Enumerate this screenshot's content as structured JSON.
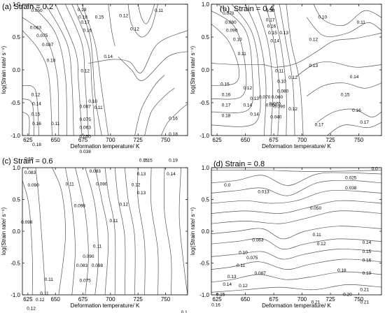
{
  "chart_data": [
    {
      "type": "contour",
      "title": "(a) Strain = 0.2",
      "xlabel": "Deformation temperature/ K",
      "ylabel": "log(Strain rate/ s⁻¹)",
      "xlim": [
        620,
        770
      ],
      "ylim": [
        -1.0,
        1.0
      ],
      "xticks": [
        625,
        650,
        675,
        700,
        725,
        750
      ],
      "yticks": [
        -1.0,
        -0.5,
        0.0,
        0.5,
        1.0
      ],
      "contour_labels": [
        {
          "text": "0.050",
          "x": 633,
          "y": 0.9
        },
        {
          "text": "0.063",
          "x": 632,
          "y": 0.64
        },
        {
          "text": "0.075",
          "x": 638,
          "y": 0.52
        },
        {
          "text": "0.087",
          "x": 643,
          "y": 0.38
        },
        {
          "text": "0.10",
          "x": 646,
          "y": 0.14
        },
        {
          "text": "0.19",
          "x": 674,
          "y": 0.91
        },
        {
          "text": "0.18",
          "x": 675,
          "y": 0.8
        },
        {
          "text": "0.17",
          "x": 677,
          "y": 0.72
        },
        {
          "text": "0.16",
          "x": 679,
          "y": 0.6
        },
        {
          "text": "0.15",
          "x": 690,
          "y": 0.8
        },
        {
          "text": "0.12",
          "x": 712,
          "y": 0.82
        },
        {
          "text": "0.12",
          "x": 722,
          "y": 0.62
        },
        {
          "text": "0.11",
          "x": 744,
          "y": 0.9
        },
        {
          "text": "0.14",
          "x": 698,
          "y": 0.2
        },
        {
          "text": "0.12",
          "x": 677,
          "y": -0.02
        },
        {
          "text": "0.12",
          "x": 632,
          "y": -0.38
        },
        {
          "text": "0.14",
          "x": 633,
          "y": -0.52
        },
        {
          "text": "0.15",
          "x": 632,
          "y": -0.68
        },
        {
          "text": "0.16",
          "x": 633,
          "y": -0.82
        },
        {
          "text": "0.18",
          "x": 633,
          "y": -1.14
        },
        {
          "text": "0.11",
          "x": 650,
          "y": -0.82
        },
        {
          "text": "0.10",
          "x": 684,
          "y": -0.48
        },
        {
          "text": "0.087",
          "x": 677,
          "y": -0.56
        },
        {
          "text": "0.11",
          "x": 689,
          "y": -0.58
        },
        {
          "text": "0.075",
          "x": 677,
          "y": -0.76
        },
        {
          "text": "0.063",
          "x": 677,
          "y": -0.88
        },
        {
          "text": "0.050",
          "x": 677,
          "y": -1.02
        },
        {
          "text": "0.038",
          "x": 677,
          "y": -1.25
        },
        {
          "text": "0.16",
          "x": 757,
          "y": -0.74
        },
        {
          "text": "0.18",
          "x": 757,
          "y": -0.98
        },
        {
          "text": "0.19",
          "x": 626,
          "y": -1.36
        },
        {
          "text": "0.15",
          "x": 730,
          "y": -1.38
        },
        {
          "text": "0.15",
          "x": 734,
          "y": -1.38
        },
        {
          "text": "0.19",
          "x": 757,
          "y": -1.38
        }
      ]
    },
    {
      "type": "contour",
      "title_prefix": "(b)",
      "title": "Strain = 0.4",
      "xlabel": "Deformation temperature/ K",
      "ylabel": "log(Strain rate/ s⁻¹)",
      "xlim": [
        620,
        770
      ],
      "ylim": [
        -1.0,
        1.0
      ],
      "xticks": [
        625,
        650,
        675,
        700,
        725,
        750
      ],
      "yticks": [
        -1.0,
        -0.5,
        0.0,
        0.5,
        1.0
      ],
      "contour_labels": [
        {
          "text": "0.070",
          "x": 635,
          "y": 0.86
        },
        {
          "text": "0.080",
          "x": 637,
          "y": 0.72
        },
        {
          "text": "0.090",
          "x": 638,
          "y": 0.6
        },
        {
          "text": "0.10",
          "x": 643,
          "y": 0.46
        },
        {
          "text": "0.11",
          "x": 647,
          "y": 0.24
        },
        {
          "text": "0.18",
          "x": 672,
          "y": 0.9
        },
        {
          "text": "0.17",
          "x": 672,
          "y": 0.76
        },
        {
          "text": "0.16",
          "x": 673,
          "y": 0.66
        },
        {
          "text": "0.15",
          "x": 674,
          "y": 0.56
        },
        {
          "text": "0.14",
          "x": 676,
          "y": 0.44
        },
        {
          "text": "0.13",
          "x": 684,
          "y": 0.56
        },
        {
          "text": "0.10",
          "x": 718,
          "y": 0.8
        },
        {
          "text": "0.11",
          "x": 752,
          "y": 0.72
        },
        {
          "text": "0.12",
          "x": 710,
          "y": 0.46
        },
        {
          "text": "0.13",
          "x": 710,
          "y": 0.06
        },
        {
          "text": "0.12",
          "x": 692,
          "y": -0.12
        },
        {
          "text": "0.11",
          "x": 680,
          "y": -0.02
        },
        {
          "text": "0.10",
          "x": 682,
          "y": -0.18
        },
        {
          "text": "0.14",
          "x": 746,
          "y": -0.11
        },
        {
          "text": "0.15",
          "x": 738,
          "y": -0.38
        },
        {
          "text": "0.16",
          "x": 748,
          "y": -0.62
        },
        {
          "text": "0.17",
          "x": 715,
          "y": -0.84
        },
        {
          "text": "0.17",
          "x": 755,
          "y": -0.8
        },
        {
          "text": "0.15",
          "x": 632,
          "y": -0.22
        },
        {
          "text": "0.16",
          "x": 633,
          "y": -0.38
        },
        {
          "text": "0.17",
          "x": 633,
          "y": -0.54
        },
        {
          "text": "0.18",
          "x": 633,
          "y": -0.7
        },
        {
          "text": "0.12",
          "x": 652,
          "y": -0.28
        },
        {
          "text": "0.14",
          "x": 652,
          "y": -0.54
        },
        {
          "text": "0.13",
          "x": 658,
          "y": -0.44
        },
        {
          "text": "0.14",
          "x": 658,
          "y": -0.68
        },
        {
          "text": "0.070",
          "x": 667,
          "y": -0.42
        },
        {
          "text": "0.080",
          "x": 683,
          "y": -0.33
        },
        {
          "text": "0.060",
          "x": 678,
          "y": -0.42
        },
        {
          "text": "0.070",
          "x": 676,
          "y": -0.52
        },
        {
          "text": "0.050",
          "x": 673,
          "y": -0.54
        },
        {
          "text": "0.090",
          "x": 680,
          "y": -0.56
        },
        {
          "text": "0.040",
          "x": 677,
          "y": -0.72
        },
        {
          "text": "0.12",
          "x": 692,
          "y": -0.6
        }
      ]
    },
    {
      "type": "contour",
      "title": "(c) Strain = 0.6",
      "xlabel": "Deformation temperature/ K",
      "ylabel": "log(Strain rate/ s⁻¹)",
      "xlim": [
        620,
        770
      ],
      "ylim": [
        -1.0,
        1.0
      ],
      "xticks": [
        625,
        650,
        675,
        700,
        725,
        750
      ],
      "yticks": [
        -1.0,
        -0.5,
        0.0,
        0.5,
        1.0
      ],
      "contour_labels": [
        {
          "text": "0.083",
          "x": 627,
          "y": 0.92
        },
        {
          "text": "0.090",
          "x": 630,
          "y": 0.72
        },
        {
          "text": "0.11",
          "x": 663,
          "y": 0.74
        },
        {
          "text": "0.083",
          "x": 686,
          "y": 0.94
        },
        {
          "text": "0.090",
          "x": 692,
          "y": 0.74
        },
        {
          "text": "0.13",
          "x": 728,
          "y": 0.9
        },
        {
          "text": "0.14",
          "x": 755,
          "y": 0.9
        },
        {
          "text": "0.12",
          "x": 723,
          "y": 0.73
        },
        {
          "text": "0.13",
          "x": 728,
          "y": 0.6
        },
        {
          "text": "0.098",
          "x": 672,
          "y": 0.4
        },
        {
          "text": "0.098",
          "x": 624,
          "y": 0.14
        },
        {
          "text": "0.12",
          "x": 712,
          "y": 0.42
        },
        {
          "text": "0.11",
          "x": 703,
          "y": 0.16
        },
        {
          "text": "0.11",
          "x": 688,
          "y": -0.24
        },
        {
          "text": "0.090",
          "x": 680,
          "y": -0.4
        },
        {
          "text": "0.083",
          "x": 674,
          "y": -0.54
        },
        {
          "text": "0.098",
          "x": 688,
          "y": -0.54
        },
        {
          "text": "0.075",
          "x": 677,
          "y": -0.78
        },
        {
          "text": "0.11",
          "x": 644,
          "y": -0.76
        },
        {
          "text": "0.11",
          "x": 640,
          "y": -0.98
        },
        {
          "text": "0.12",
          "x": 636,
          "y": -1.08
        },
        {
          "text": "0.12",
          "x": 628,
          "y": -1.22
        },
        {
          "text": "0.13",
          "x": 626,
          "y": -1.34
        },
        {
          "text": "0.068",
          "x": 675,
          "y": -1.32
        },
        {
          "text": "0.1",
          "x": 767,
          "y": -1.28
        }
      ]
    },
    {
      "type": "contour",
      "title": "(d) Strain = 0.8",
      "xlabel": "Deformation temperature/ K",
      "ylabel": "log(Strain rate/ s⁻¹)",
      "xlim": [
        620,
        770
      ],
      "ylim": [
        -1.0,
        1.0
      ],
      "xticks": [
        625,
        650,
        675,
        700,
        725,
        750
      ],
      "yticks": [
        -1.0,
        -0.5,
        0.0,
        0.5,
        1.0
      ],
      "contour_labels": [
        {
          "text": "0.0",
          "x": 764,
          "y": 0.98
        },
        {
          "text": "0.0",
          "x": 634,
          "y": 0.72
        },
        {
          "text": "0.025",
          "x": 743,
          "y": 0.84
        },
        {
          "text": "0.013",
          "x": 666,
          "y": 0.62
        },
        {
          "text": "0.038",
          "x": 743,
          "y": 0.68
        },
        {
          "text": "0.050",
          "x": 712,
          "y": 0.36
        },
        {
          "text": "0.063",
          "x": 661,
          "y": -0.14
        },
        {
          "text": "0.11",
          "x": 713,
          "y": -0.06
        },
        {
          "text": "0.12",
          "x": 717,
          "y": -0.2
        },
        {
          "text": "0.10",
          "x": 648,
          "y": -0.34
        },
        {
          "text": "0.075",
          "x": 656,
          "y": -0.42
        },
        {
          "text": "0.11",
          "x": 646,
          "y": -0.54
        },
        {
          "text": "0.087",
          "x": 663,
          "y": -0.66
        },
        {
          "text": "0.13",
          "x": 638,
          "y": -0.72
        },
        {
          "text": "0.14",
          "x": 634,
          "y": -0.84
        },
        {
          "text": "0.12",
          "x": 648,
          "y": -0.86
        },
        {
          "text": "0.15",
          "x": 628,
          "y": -1.0
        },
        {
          "text": "0.16",
          "x": 624,
          "y": -1.16
        },
        {
          "text": "0.14",
          "x": 757,
          "y": -0.18
        },
        {
          "text": "0.15",
          "x": 757,
          "y": -0.32
        },
        {
          "text": "0.16",
          "x": 757,
          "y": -0.46
        },
        {
          "text": "0.18",
          "x": 735,
          "y": -0.62
        },
        {
          "text": "0.19",
          "x": 757,
          "y": -0.66
        },
        {
          "text": "0.20",
          "x": 740,
          "y": -1.0
        },
        {
          "text": "0.21",
          "x": 755,
          "y": -0.92
        },
        {
          "text": "0.21",
          "x": 712,
          "y": -1.12
        },
        {
          "text": "0.21",
          "x": 755,
          "y": -1.12
        }
      ]
    }
  ]
}
